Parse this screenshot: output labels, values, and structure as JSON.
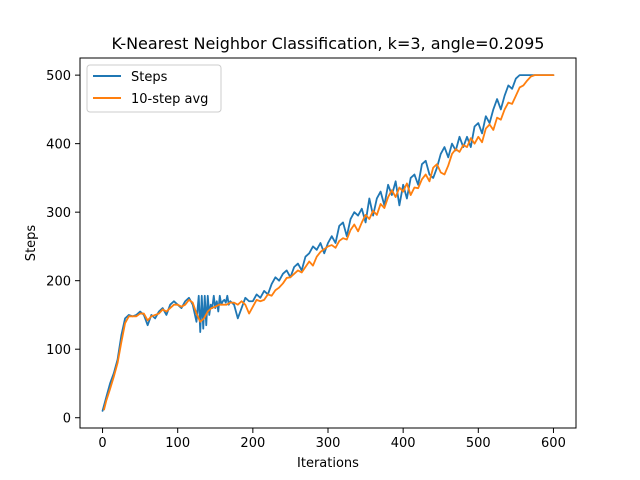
{
  "chart_data": {
    "type": "line",
    "title": "K-Nearest Neighbor Classification, k=3, angle=0.2095",
    "xlabel": "Iterations",
    "ylabel": "Steps",
    "xlim": [
      -30,
      630
    ],
    "ylim": [
      -15,
      525
    ],
    "xticks": [
      0,
      100,
      200,
      300,
      400,
      500,
      600
    ],
    "yticks": [
      0,
      100,
      200,
      300,
      400,
      500
    ],
    "grid": false,
    "legend_position": "top-left",
    "series": [
      {
        "name": "Steps",
        "color": "#1f77b4",
        "x": [
          0,
          5,
          10,
          15,
          20,
          25,
          30,
          35,
          40,
          45,
          50,
          55,
          60,
          65,
          70,
          75,
          80,
          85,
          90,
          95,
          100,
          105,
          110,
          115,
          120,
          125,
          128,
          130,
          132,
          134,
          136,
          138,
          140,
          142,
          144,
          146,
          148,
          150,
          152,
          154,
          156,
          158,
          160,
          162,
          164,
          166,
          168,
          170,
          175,
          180,
          185,
          190,
          195,
          200,
          205,
          210,
          215,
          220,
          225,
          230,
          235,
          240,
          245,
          250,
          255,
          260,
          265,
          270,
          275,
          280,
          285,
          290,
          295,
          300,
          305,
          310,
          315,
          320,
          325,
          330,
          335,
          340,
          345,
          350,
          355,
          360,
          365,
          370,
          375,
          380,
          385,
          390,
          395,
          400,
          405,
          410,
          415,
          420,
          425,
          430,
          435,
          440,
          445,
          450,
          455,
          460,
          465,
          470,
          475,
          480,
          485,
          490,
          495,
          500,
          505,
          510,
          515,
          520,
          525,
          530,
          535,
          540,
          545,
          550,
          555,
          560,
          565,
          570,
          575,
          580,
          585,
          590,
          595,
          600
        ],
        "y": [
          10,
          30,
          50,
          65,
          85,
          120,
          145,
          150,
          148,
          150,
          155,
          150,
          135,
          150,
          145,
          155,
          160,
          150,
          165,
          170,
          165,
          160,
          170,
          175,
          165,
          140,
          178,
          125,
          178,
          130,
          178,
          135,
          178,
          150,
          165,
          160,
          178,
          160,
          170,
          155,
          178,
          165,
          170,
          172,
          168,
          178,
          165,
          170,
          165,
          145,
          160,
          175,
          170,
          170,
          180,
          175,
          185,
          180,
          195,
          205,
          200,
          210,
          215,
          205,
          220,
          225,
          215,
          235,
          240,
          250,
          245,
          255,
          240,
          255,
          265,
          255,
          280,
          285,
          265,
          290,
          300,
          295,
          305,
          285,
          320,
          295,
          320,
          330,
          310,
          340,
          325,
          345,
          310,
          340,
          320,
          350,
          355,
          340,
          370,
          375,
          355,
          350,
          365,
          385,
          395,
          380,
          400,
          390,
          410,
          395,
          410,
          395,
          425,
          430,
          415,
          440,
          430,
          450,
          465,
          450,
          470,
          485,
          480,
          495,
          500,
          500,
          500,
          500,
          500,
          500,
          500,
          500,
          500,
          500
        ]
      },
      {
        "name": "10-step avg",
        "color": "#ff7f0e",
        "x": [
          2,
          5,
          10,
          15,
          20,
          25,
          30,
          35,
          40,
          45,
          50,
          55,
          60,
          65,
          70,
          75,
          80,
          85,
          90,
          95,
          100,
          105,
          110,
          115,
          120,
          125,
          130,
          135,
          140,
          145,
          150,
          155,
          160,
          165,
          170,
          175,
          180,
          185,
          190,
          195,
          200,
          205,
          210,
          215,
          220,
          225,
          230,
          235,
          240,
          245,
          250,
          255,
          260,
          265,
          270,
          275,
          280,
          285,
          290,
          295,
          300,
          305,
          310,
          315,
          320,
          325,
          330,
          335,
          340,
          345,
          350,
          355,
          360,
          365,
          370,
          375,
          380,
          385,
          390,
          395,
          400,
          405,
          410,
          415,
          420,
          425,
          430,
          435,
          440,
          445,
          450,
          455,
          460,
          465,
          470,
          475,
          480,
          485,
          490,
          495,
          500,
          505,
          510,
          515,
          520,
          525,
          530,
          535,
          540,
          545,
          550,
          555,
          560,
          565,
          570,
          575,
          580,
          585,
          590,
          595,
          600
        ],
        "y": [
          12,
          25,
          42,
          60,
          80,
          110,
          138,
          148,
          148,
          148,
          152,
          152,
          142,
          148,
          150,
          152,
          158,
          155,
          160,
          165,
          165,
          162,
          165,
          172,
          168,
          152,
          140,
          145,
          155,
          160,
          162,
          165,
          165,
          165,
          168,
          168,
          165,
          170,
          165,
          152,
          162,
          172,
          170,
          172,
          180,
          178,
          186,
          190,
          196,
          204,
          205,
          210,
          215,
          212,
          220,
          228,
          222,
          235,
          242,
          246,
          250,
          252,
          248,
          258,
          262,
          260,
          274,
          282,
          272,
          285,
          296,
          290,
          302,
          296,
          312,
          306,
          322,
          332,
          322,
          336,
          330,
          342,
          325,
          336,
          335,
          348,
          355,
          345,
          365,
          370,
          358,
          355,
          368,
          385,
          392,
          388,
          398,
          395,
          408,
          400,
          410,
          402,
          422,
          428,
          420,
          438,
          435,
          450,
          460,
          458,
          470,
          482,
          485,
          492,
          498,
          500,
          500,
          500,
          500,
          500,
          500
        ]
      }
    ]
  }
}
